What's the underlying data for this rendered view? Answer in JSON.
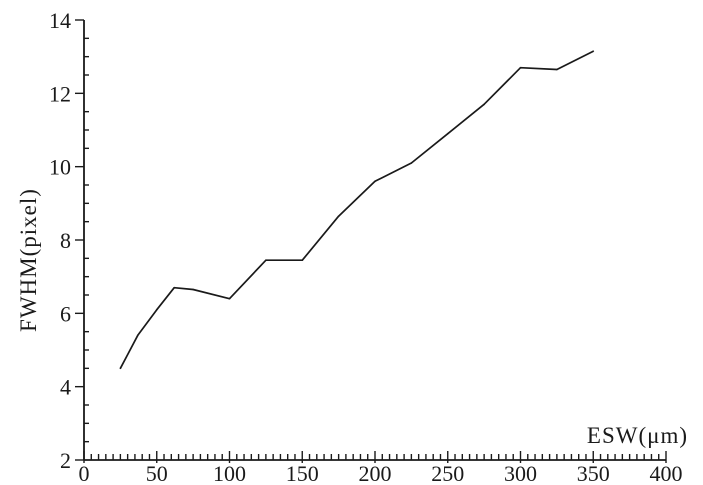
{
  "chart_data": {
    "type": "line",
    "xlabel": "ESW(μm)",
    "ylabel": "FWHM(pixel)",
    "xlim": [
      0,
      400
    ],
    "ylim": [
      2,
      14
    ],
    "x_ticks": [
      0,
      50,
      100,
      150,
      200,
      250,
      300,
      350,
      400
    ],
    "y_ticks": [
      2,
      4,
      6,
      8,
      10,
      12,
      14
    ],
    "x_minor_step": 5,
    "y_minor_step": 0.5,
    "grid": false,
    "series": [
      {
        "x": [
          25,
          37,
          50,
          62,
          75,
          100,
          125,
          150,
          175,
          200,
          225,
          250,
          275,
          300,
          325,
          350
        ],
        "values": [
          4.5,
          5.4,
          6.1,
          6.7,
          6.65,
          6.4,
          7.45,
          7.45,
          8.65,
          9.6,
          10.1,
          10.9,
          11.7,
          12.7,
          12.65,
          13.15
        ]
      }
    ]
  }
}
